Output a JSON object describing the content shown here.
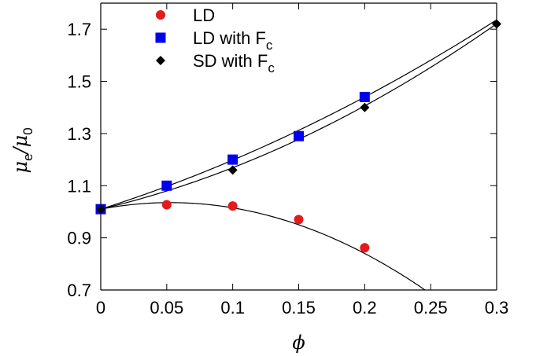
{
  "chart_data": {
    "type": "scatter",
    "title": "",
    "xlabel": "ϕ",
    "ylabel": {
      "base": "μ",
      "sub_e": "e",
      "slash": "/",
      "base2": "μ",
      "sub_0": "0"
    },
    "xlim": [
      0,
      0.3
    ],
    "ylim": [
      0.7,
      1.8
    ],
    "x_ticks": [
      "0",
      "0.05",
      "0.1",
      "0.15",
      "0.2",
      "0.25",
      "0.3"
    ],
    "y_ticks": [
      "0.7",
      "0.9",
      "1.1",
      "1.3",
      "1.5",
      "1.7"
    ],
    "grid": false,
    "legend_position": "top-left",
    "series": [
      {
        "name": "LD",
        "marker": "circle",
        "color": "#e41a1c",
        "x": [
          0,
          0.05,
          0.1,
          0.15,
          0.2
        ],
        "y": [
          1.01,
          1.027,
          1.022,
          0.97,
          0.862
        ],
        "fit": {
          "type": "quadratic",
          "coeffs": [
            1.01,
            0.95,
            -9.0
          ]
        }
      },
      {
        "name": "LD with F",
        "name_sub": "c",
        "marker": "square",
        "color": "#0000ee",
        "x": [
          0,
          0.05,
          0.1,
          0.15,
          0.2
        ],
        "y": [
          1.01,
          1.1,
          1.2,
          1.29,
          1.44
        ],
        "fit": {
          "type": "quadratic",
          "coeffs": [
            1.01,
            1.61,
            2.7
          ]
        }
      },
      {
        "name": "SD with F",
        "name_sub": "c",
        "marker": "diamond",
        "color": "#000000",
        "x": [
          0,
          0.1,
          0.2,
          0.3
        ],
        "y": [
          1.01,
          1.16,
          1.4,
          1.72
        ],
        "fit": {
          "type": "quadratic",
          "coeffs": [
            1.01,
            1.2,
            3.9
          ]
        }
      }
    ]
  }
}
